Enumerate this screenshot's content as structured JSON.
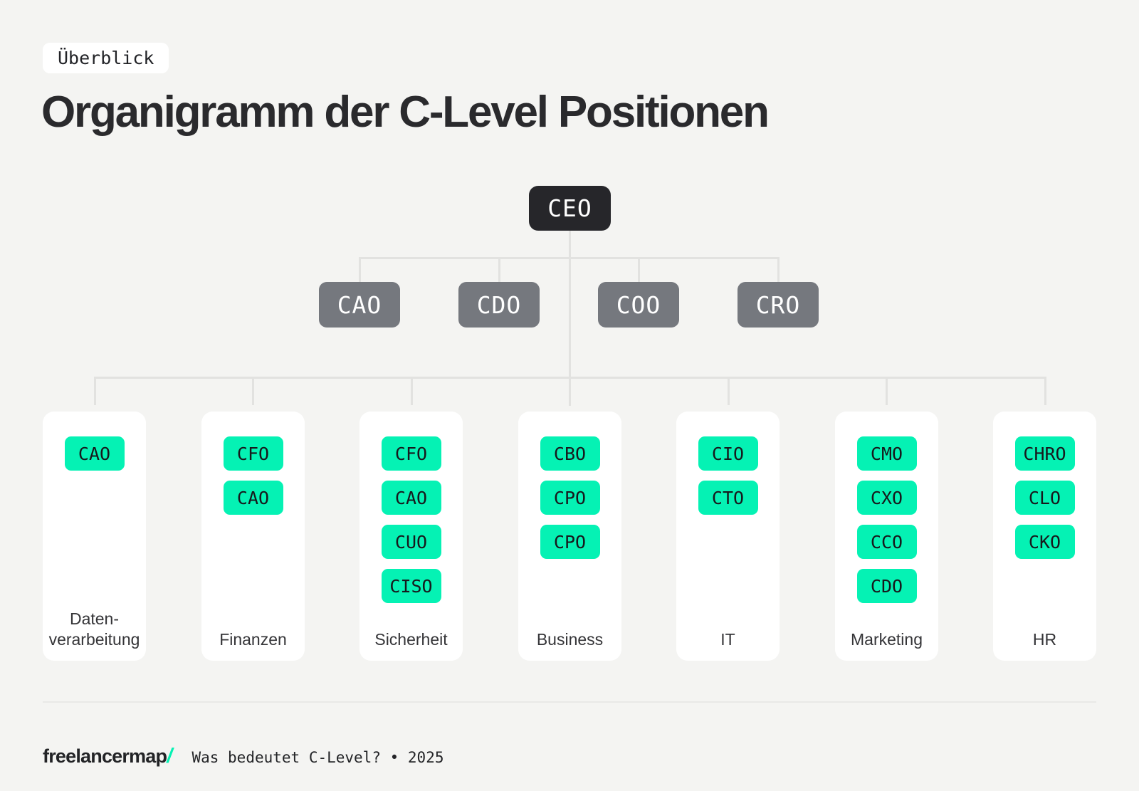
{
  "colors": {
    "page-bg": "#f4f4f2",
    "card-bg": "#ffffff",
    "accent-green": "#05f2b4",
    "node-dark": "#26262a",
    "node-gray": "#75787e",
    "connector": "#e2e2e0",
    "text-dark": "#2a2a2d",
    "chip-text": "#17191c",
    "label-text": "#343437",
    "divider": "#e9e9e7",
    "node-text": "#ffffff"
  },
  "badge": {
    "label": "Überblick"
  },
  "title": "Organigramm der C-Level Positionen",
  "org_chart": {
    "root": {
      "label": "CEO"
    },
    "level2": [
      "CAO",
      "CDO",
      "COO",
      "CRO"
    ],
    "departments": [
      {
        "label_lines": [
          "Daten-",
          "verarbeitung"
        ],
        "chips": [
          "CAO"
        ]
      },
      {
        "label": "Finanzen",
        "chips": [
          "CFO",
          "CAO"
        ]
      },
      {
        "label": "Sicherheit",
        "chips": [
          "CFO",
          "CAO",
          "CUO",
          "CISO"
        ]
      },
      {
        "label": "Business",
        "chips": [
          "CBO",
          "CPO",
          "CPO"
        ]
      },
      {
        "label": "IT",
        "chips": [
          "CIO",
          "CTO"
        ]
      },
      {
        "label": "Marketing",
        "chips": [
          "CMO",
          "CXO",
          "CCO",
          "CDO"
        ]
      },
      {
        "label": "HR",
        "chips": [
          "CHRO",
          "CLO",
          "CKO"
        ]
      }
    ]
  },
  "footer": {
    "logo_text": "freelancermap",
    "logo_slash": "/",
    "tagline": "Was bedeutet C-Level? • 2025"
  }
}
